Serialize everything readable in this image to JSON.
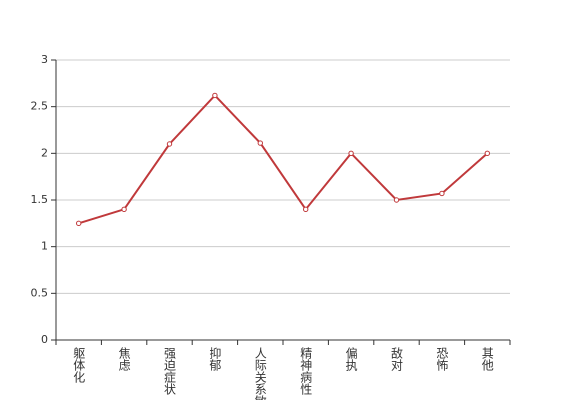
{
  "chart_data": {
    "type": "line",
    "categories": [
      "躯体化",
      "焦虑",
      "强迫症状",
      "抑郁",
      "人际关系敏感",
      "精神病性",
      "偏执",
      "敌对",
      "恐怖",
      "其他"
    ],
    "values": [
      1.25,
      1.4,
      2.1,
      2.62,
      2.11,
      1.4,
      2.0,
      1.5,
      1.57,
      2.0
    ],
    "color": "#c0393b",
    "ylim": [
      0,
      3
    ],
    "yticks": [
      0,
      0.5,
      1,
      1.5,
      2,
      2.5,
      3
    ],
    "grid": true
  }
}
